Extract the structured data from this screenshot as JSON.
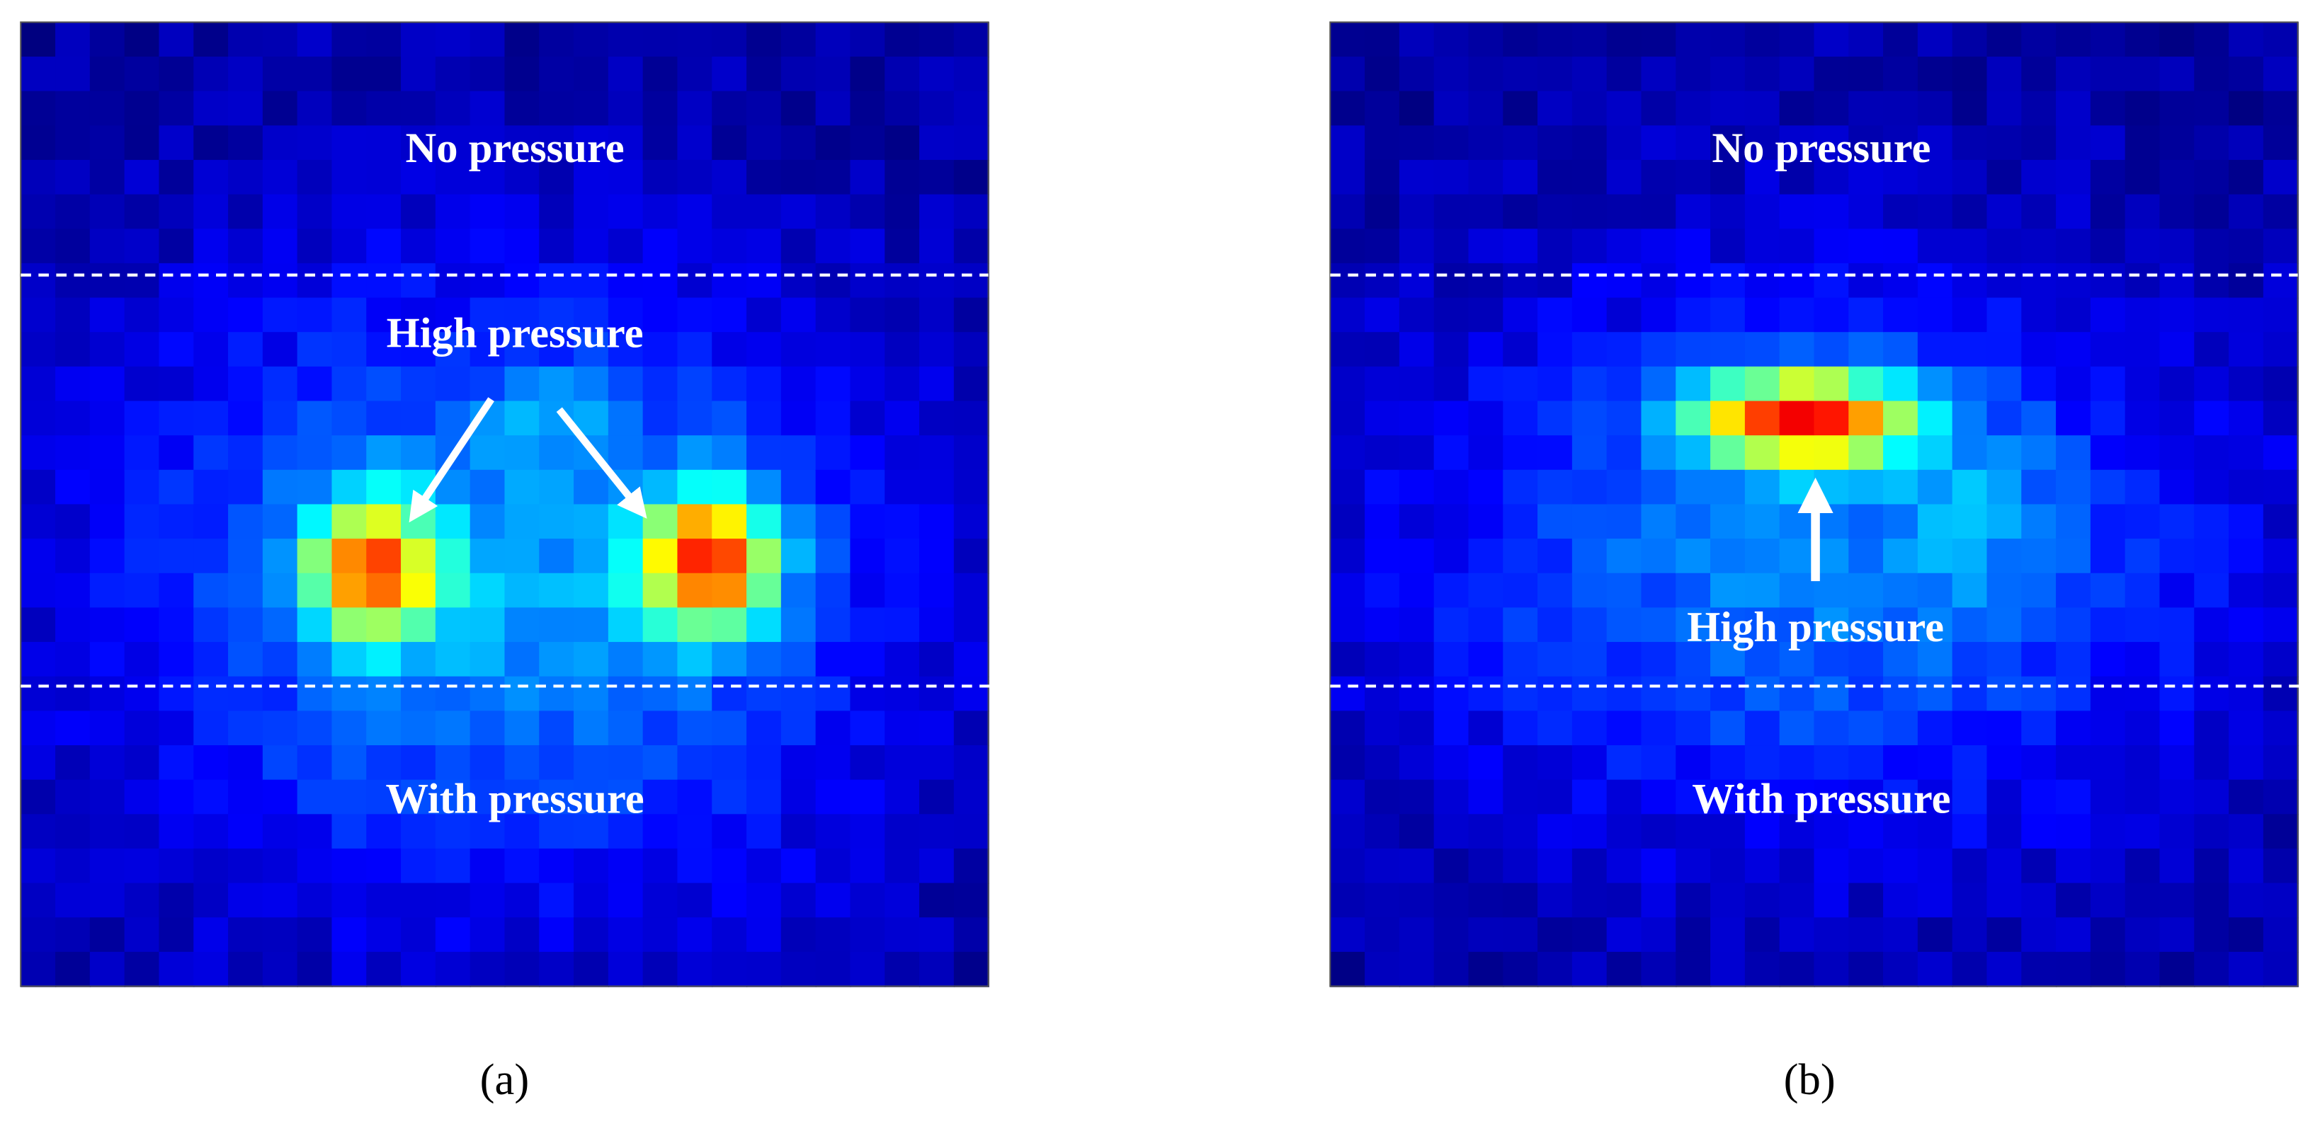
{
  "panels": [
    {
      "top_text": "No pressure",
      "high_text": "High pressure",
      "bottom_text": "With pressure",
      "label": "(a)"
    },
    {
      "top_text": "No pressure",
      "high_text": "High pressure",
      "bottom_text": "With pressure",
      "label": "(b)"
    }
  ]
}
